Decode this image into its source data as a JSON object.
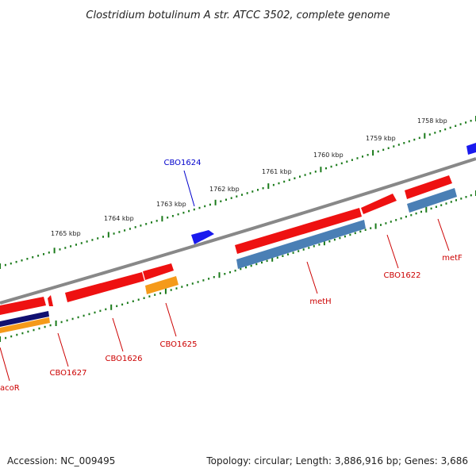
{
  "title": "Clostridium botulinum A str. ATCC 3502, complete genome",
  "footer": {
    "accession": "Accession: NC_009495",
    "topology": "Topology: circular; Length: 3,886,916 bp; Genes: 3,686"
  },
  "colors": {
    "backbone": "#888888",
    "tick": "#1a7a1a",
    "forward_gene": "#ee1111",
    "reverse_label": "#cc0000",
    "forward_label": "#0000cc",
    "cds_blue": "#1a1aee",
    "cds_steel": "#4a7fb5",
    "cds_orange": "#f59a1a",
    "cds_navy": "#101070"
  },
  "ticks": [
    {
      "label": "1758 kbp"
    },
    {
      "label": "1759 kbp"
    },
    {
      "label": "1760 kbp"
    },
    {
      "label": "1761 kbp"
    },
    {
      "label": "1762 kbp"
    },
    {
      "label": "1763 kbp"
    },
    {
      "label": "1764 kbp"
    },
    {
      "label": "1765 kbp"
    }
  ],
  "genes": [
    {
      "name": "CBO1624",
      "strand": "forward"
    },
    {
      "name": "CBO1622",
      "strand": "reverse"
    },
    {
      "name": "metF",
      "strand": "reverse"
    },
    {
      "name": "metH",
      "strand": "reverse"
    },
    {
      "name": "CBO1625",
      "strand": "reverse"
    },
    {
      "name": "CBO1626",
      "strand": "reverse"
    },
    {
      "name": "CBO1627",
      "strand": "reverse"
    },
    {
      "name": "acoR",
      "strand": "reverse"
    }
  ]
}
